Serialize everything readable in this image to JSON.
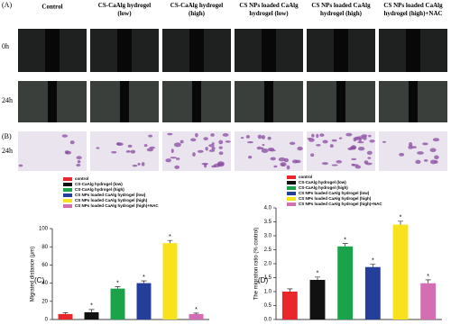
{
  "panel_a": {
    "label": "(A)",
    "columns": [
      "Control",
      "CS-CaAlg hydrogel (low)",
      "CS-CaAlg hydrogel (high)",
      "CS NPs loaded CaAlg hydrogel (low)",
      "CS NPs loaded CaAlg hydrogel (high)",
      "CS NPs loaded CaAlg hydrogel (high)+NAC"
    ],
    "rows": [
      "0h",
      "24h"
    ]
  },
  "panel_b": {
    "label": "(B)",
    "row": "24h"
  },
  "chart_data": [
    {
      "type": "bar",
      "panel": "(C)",
      "y_label": "Migrated distance (μm)",
      "ylim": [
        0,
        100
      ],
      "yticks": [
        0,
        20,
        40,
        60,
        80,
        100
      ],
      "series": [
        {
          "name": "control",
          "color": "#e8262b",
          "values": [
            6
          ],
          "errors": [
            1.5
          ],
          "marker": null
        },
        {
          "name": "CS-CaAlg hydrogel (low)",
          "color": "#111111",
          "values": [
            8
          ],
          "errors": [
            3
          ],
          "marker": "*"
        },
        {
          "name": "CS-CaAlg hydrogel (high)",
          "color": "#1aa34a",
          "values": [
            34
          ],
          "errors": [
            2
          ],
          "marker": "*"
        },
        {
          "name": "CS NPs loaded CaAlg hydrogel (low)",
          "color": "#243f99",
          "values": [
            40
          ],
          "errors": [
            2.5
          ],
          "marker": "*"
        },
        {
          "name": "CS NPs loaded CaAlg hydrogel (high)",
          "color": "#f7e21b",
          "values": [
            84
          ],
          "errors": [
            3
          ],
          "marker": "*"
        },
        {
          "name": "CS NPs loaded CaAlg hydrogel (high)+NAC",
          "color": "#d46eb3",
          "values": [
            6
          ],
          "errors": [
            1
          ],
          "marker": "*"
        }
      ]
    },
    {
      "type": "bar",
      "panel": "(D)",
      "y_label": "The migration ratio (% control)",
      "ylim": [
        0,
        4
      ],
      "yticks": [
        {
          "value": 0,
          "label": "0.0"
        },
        {
          "value": 0.5,
          "label": "0.5"
        },
        {
          "value": 1,
          "label": "1.0"
        },
        {
          "value": 1.5,
          "label": "1.5"
        },
        {
          "value": 2,
          "label": "2.0"
        },
        {
          "value": 2.5,
          "label": "2.5"
        },
        {
          "value": 3,
          "label": "3.0"
        },
        {
          "value": 3.5,
          "label": "3.5"
        },
        {
          "value": 4,
          "label": "4.0"
        }
      ],
      "series": [
        {
          "name": "control",
          "color": "#e8262b",
          "values": [
            1.0
          ],
          "errors": [
            0.1
          ],
          "marker": null
        },
        {
          "name": "CS-CaAlg hydrogel (low)",
          "color": "#111111",
          "values": [
            1.42
          ],
          "errors": [
            0.1
          ],
          "marker": "*"
        },
        {
          "name": "CS-CaAlg hydrogel (high)",
          "color": "#1aa34a",
          "values": [
            2.62
          ],
          "errors": [
            0.1
          ],
          "marker": "*"
        },
        {
          "name": "CS NPs loaded CaAlg hydrogel (low)",
          "color": "#243f99",
          "values": [
            1.88
          ],
          "errors": [
            0.1
          ],
          "marker": "*"
        },
        {
          "name": "CS NPs loaded CaAlg hydrogel (high)",
          "color": "#f7e21b",
          "values": [
            3.4
          ],
          "errors": [
            0.12
          ],
          "marker": "*"
        },
        {
          "name": "CS NPs loaded CaAlg hydrogel (high)+NAC",
          "color": "#d46eb3",
          "values": [
            1.3
          ],
          "errors": [
            0.12
          ],
          "marker": "*"
        }
      ]
    }
  ]
}
